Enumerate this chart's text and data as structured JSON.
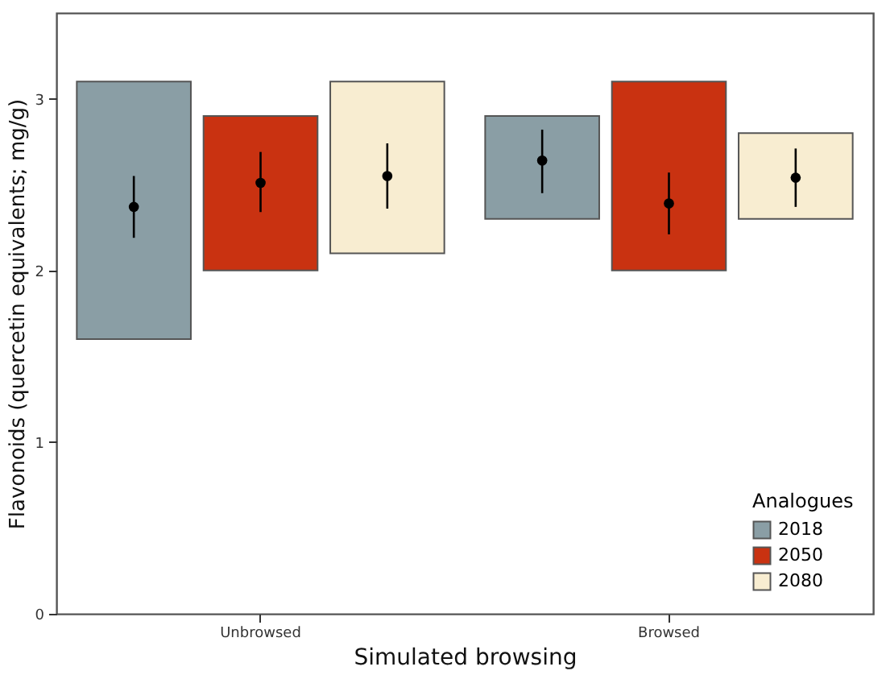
{
  "chart_data": {
    "type": "bar",
    "xlabel": "Simulated browsing",
    "ylabel": "Flavonoids (quercetin equivalents; mg/g)",
    "legend_title": "Analogues",
    "categories": [
      "Unbrowsed",
      "Browsed"
    ],
    "series": [
      {
        "name": "2018",
        "color": "#8a9ea5",
        "base": [
          1.6,
          2.3
        ],
        "values": [
          1.5,
          0.6
        ]
      },
      {
        "name": "2050",
        "color": "#c93211",
        "base": [
          2.0,
          2.0
        ],
        "values": [
          0.9,
          1.1
        ]
      },
      {
        "name": "2080",
        "color": "#f8edd1",
        "base": [
          2.1,
          2.3
        ],
        "values": [
          1.0,
          0.5
        ]
      },
      {
        "type": "scatter",
        "color": "#000000",
        "x": [
          "Unbrowsed",
          "Browsed"
        ],
        "values": [
          2.37,
          2.64
        ],
        "errors": [
          [
            2.19,
            2.55
          ],
          [
            2.45,
            2.82
          ]
        ]
      },
      {
        "type": "scatter",
        "color": "#000000",
        "x": [
          "Unbrowsed",
          "Browsed"
        ],
        "values": [
          2.51,
          2.39
        ],
        "errors": [
          [
            2.34,
            2.69
          ],
          [
            2.21,
            2.57
          ]
        ]
      },
      {
        "type": "scatter",
        "color": "#000000",
        "x": [
          "Unbrowsed",
          "Browsed"
        ],
        "values": [
          2.55,
          2.54
        ],
        "errors": [
          [
            2.36,
            2.74
          ],
          [
            2.37,
            2.71
          ]
        ]
      }
    ],
    "ylim": [
      0,
      3.5
    ],
    "yticks": [
      0,
      1,
      2,
      3
    ],
    "grid": false,
    "legend": "bottom right",
    "marker": "circle"
  }
}
